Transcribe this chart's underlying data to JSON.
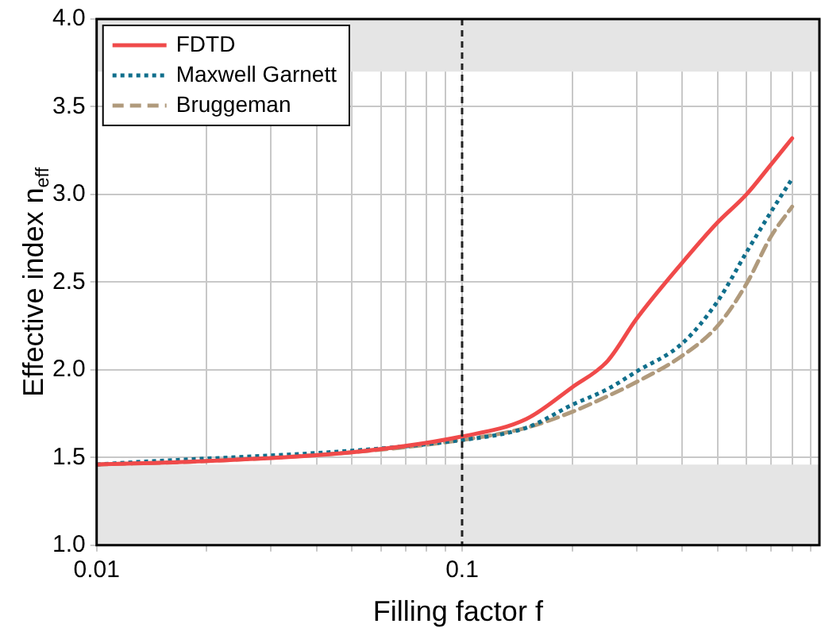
{
  "chart_data": {
    "type": "line",
    "xlabel": "Filling factor f",
    "ylabel": "Effective index n$_{eff}$",
    "x": [
      0.01,
      0.02,
      0.05,
      0.1,
      0.15,
      0.2,
      0.25,
      0.3,
      0.4,
      0.5,
      0.6,
      0.7,
      0.8
    ],
    "series": [
      {
        "name": "FDTD",
        "color": "#f04a4a",
        "line_style": "solid",
        "values": [
          1.46,
          1.48,
          1.53,
          1.62,
          1.72,
          1.9,
          2.05,
          2.29,
          2.61,
          2.84,
          3.0,
          3.17,
          3.32
        ]
      },
      {
        "name": "Maxwell Garnett",
        "color": "#106f8c",
        "line_style": "dotted",
        "values": [
          1.46,
          null,
          null,
          1.6,
          1.67,
          1.8,
          1.89,
          1.99,
          2.15,
          2.39,
          2.67,
          2.9,
          3.09
        ]
      },
      {
        "name": "Bruggeman",
        "color": "#b09a7c",
        "line_style": "dashed",
        "values": [
          1.46,
          1.48,
          1.53,
          1.6,
          1.67,
          1.76,
          1.85,
          1.93,
          2.08,
          2.25,
          2.49,
          2.76,
          2.93
        ]
      }
    ],
    "log": "x",
    "xlim": [
      0.01,
      0.95
    ],
    "xticks": [
      0.01,
      {
        "value": 0.02,
        "label": null
      },
      {
        "value": 0.03,
        "label": null
      },
      {
        "value": 0.04,
        "label": null
      },
      {
        "value": 0.05,
        "label": null
      },
      {
        "value": 0.06,
        "label": null
      },
      {
        "value": 0.07,
        "label": null
      },
      {
        "value": 0.08,
        "label": null
      },
      {
        "value": 0.09,
        "label": null
      },
      0.1,
      {
        "value": 0.2,
        "label": null
      },
      {
        "value": 0.3,
        "label": null
      },
      {
        "value": 0.4,
        "label": null
      },
      {
        "value": 0.5,
        "label": null
      },
      {
        "value": 0.6,
        "label": null
      },
      {
        "value": 0.7,
        "label": null
      },
      {
        "value": 0.8,
        "label": null
      },
      {
        "value": 0.9,
        "label": null
      }
    ],
    "ylim": [
      1,
      4
    ],
    "yticks": [
      {
        "value": 1,
        "label": "1.0"
      },
      1.5,
      {
        "value": 2,
        "label": "2.0"
      },
      2.5,
      {
        "value": 3,
        "label": "3.0"
      },
      3.5,
      {
        "value": 4,
        "label": "4.0"
      }
    ],
    "grid": true,
    "legend": "top left",
    "marker": "none",
    "ref_lines": [
      {
        "axis": "x",
        "value": 0.1,
        "color": "#222222",
        "line_style": "dashed"
      }
    ],
    "bands": [
      {
        "axis": "y",
        "from": 1,
        "to": 1.46,
        "color": "#e5e5e5"
      },
      {
        "axis": "y",
        "from": 3.7,
        "to": 4,
        "color": "#e5e5e5"
      }
    ]
  }
}
